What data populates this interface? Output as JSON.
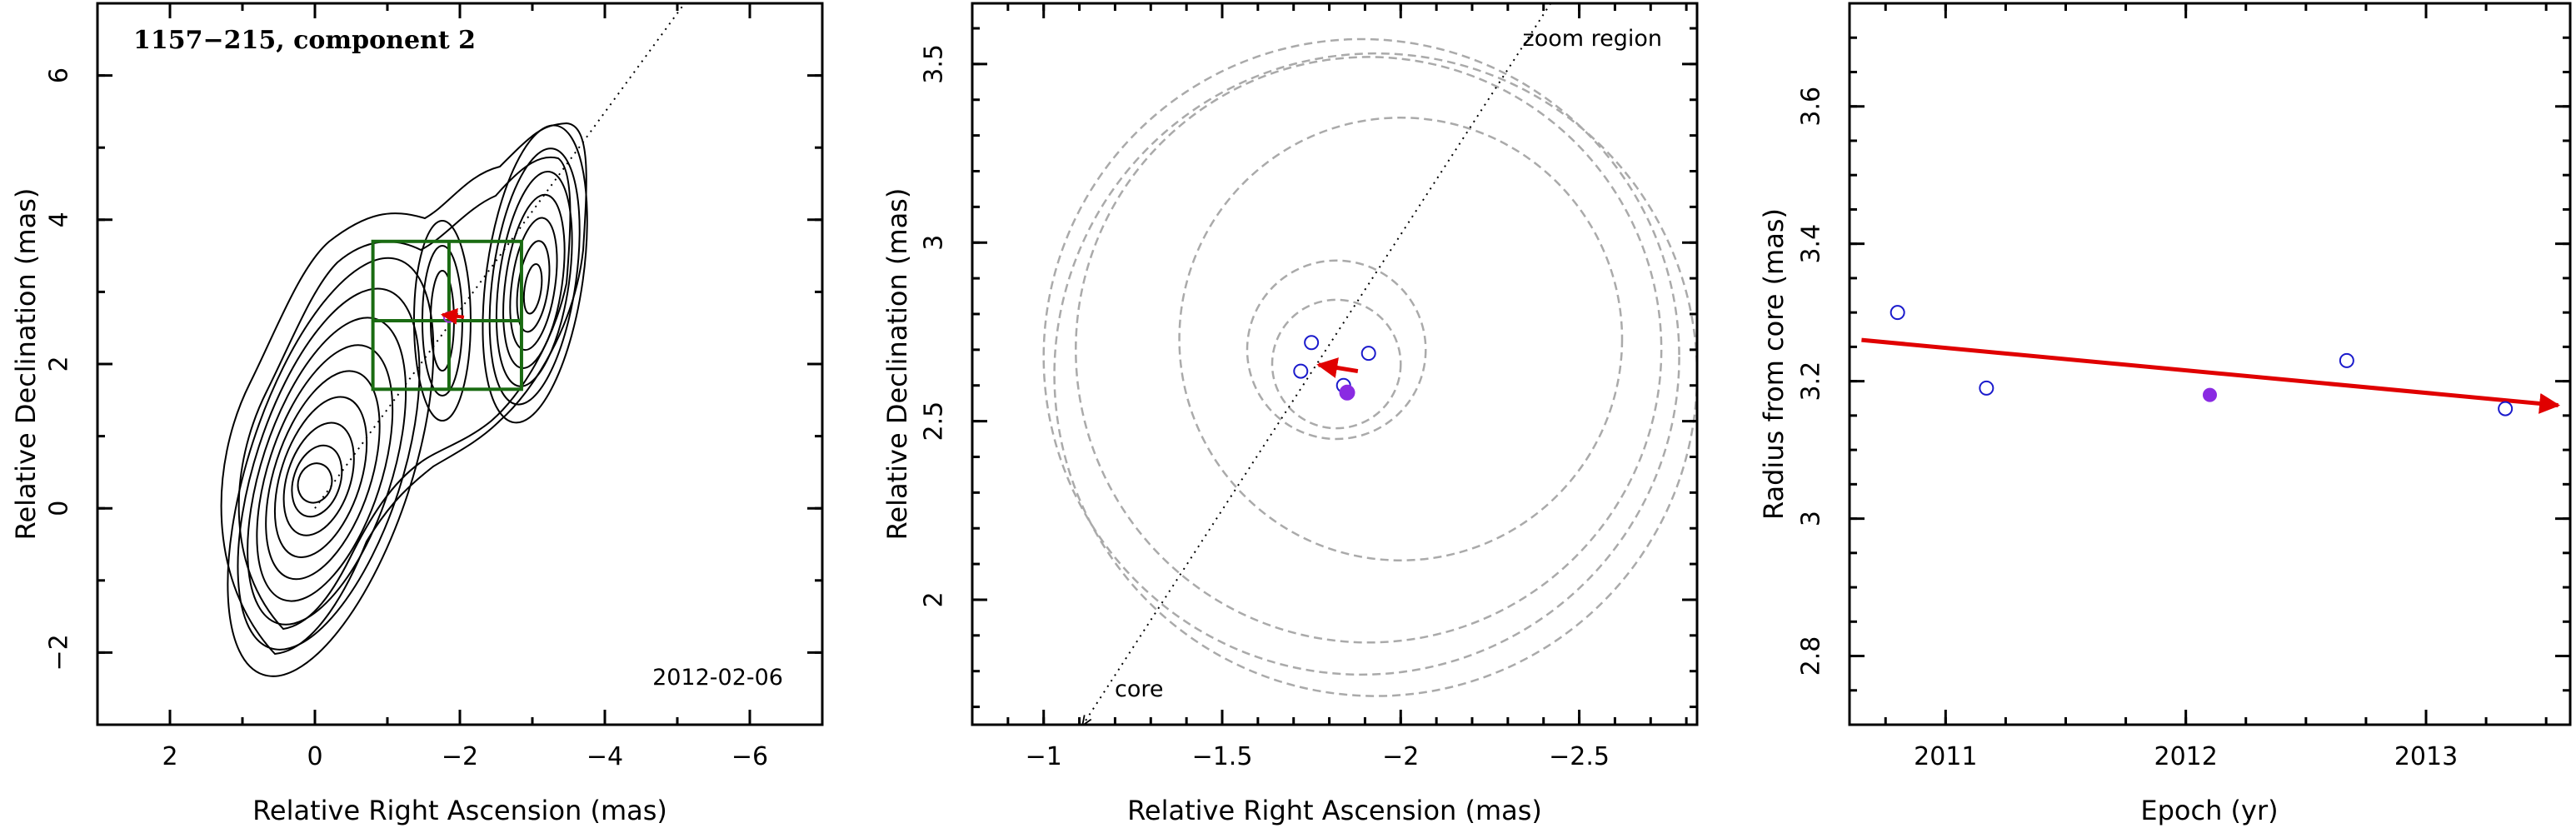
{
  "chart_data": [
    {
      "type": "contour",
      "title": "1157−215, component 2",
      "date_label": "2012-02-06",
      "xlabel": "Relative Right Ascension (mas)",
      "ylabel": "Relative Declination (mas)",
      "xlim": [
        3,
        -7
      ],
      "ylim": [
        -3,
        7
      ],
      "xticks": [
        2,
        0,
        -2,
        -4,
        -6
      ],
      "xtick_labels": [
        "2",
        "0",
        "−2",
        "−4",
        "−6"
      ],
      "yticks": [
        -2,
        0,
        2,
        4,
        6
      ],
      "ytick_labels": [
        "−2",
        "0",
        "2",
        "4",
        "6"
      ],
      "jet_axis": {
        "x1": 0,
        "y1": 0,
        "x2": -5.1,
        "y2": 7.0
      },
      "core": {
        "x": 0.0,
        "y": 0.35
      },
      "knot_inner": {
        "x": -1.85,
        "y": 2.6
      },
      "knot_outer": {
        "x": -2.95,
        "y": 3.05
      },
      "zoom_box": {
        "x": [
          -0.8,
          -2.85
        ],
        "y": [
          1.65,
          3.7
        ],
        "divider_x": -1.85,
        "divider_y": 2.6
      },
      "component_marker": {
        "x": -1.85,
        "y": 2.65
      },
      "colors": {
        "contour": "#000000",
        "box": "#1a6b12",
        "arrow": "#e00000",
        "marker": "#9b2bd6"
      }
    },
    {
      "type": "scatter",
      "corner_label": "zoom region",
      "core_label": "core",
      "xlabel": "Relative Right Ascension (mas)",
      "ylabel": "Relative Declination (mas)",
      "xlim": [
        -0.8,
        -2.83
      ],
      "ylim": [
        1.65,
        3.67
      ],
      "xticks": [
        -1,
        -1.5,
        -2,
        -2.5
      ],
      "xtick_labels": [
        "−1",
        "−1.5",
        "−2",
        "−2.5"
      ],
      "yticks": [
        2,
        2.5,
        3,
        3.5
      ],
      "ytick_labels": [
        "2",
        "2.5",
        "3",
        "3.5"
      ],
      "points_open": [
        {
          "x": -1.72,
          "y": 2.64
        },
        {
          "x": -1.75,
          "y": 2.72
        },
        {
          "x": -1.91,
          "y": 2.69
        },
        {
          "x": -1.84,
          "y": 2.6
        }
      ],
      "point_filled": {
        "x": -1.85,
        "y": 2.58
      },
      "circles": [
        {
          "cx": -1.82,
          "cy": 2.7,
          "r": 0.25
        },
        {
          "cx": -1.82,
          "cy": 2.66,
          "r": 0.18
        },
        {
          "cx": -2.0,
          "cy": 2.73,
          "r": 0.62
        },
        {
          "cx": -1.93,
          "cy": 2.63,
          "r": 0.9
        },
        {
          "cx": -1.91,
          "cy": 2.7,
          "r": 0.82
        },
        {
          "cx": -1.89,
          "cy": 2.68,
          "r": 0.89
        }
      ],
      "arrow": {
        "from": {
          "x": -1.88,
          "y": 2.64
        },
        "to": {
          "x": -1.77,
          "y": 2.658
        }
      },
      "jet_axis": {
        "x1": -1.11,
        "y1": 1.65,
        "x2": -2.42,
        "y2": 3.67
      },
      "colors": {
        "open_points": "#1a1acc",
        "filled_point": "#8a2be2",
        "circles": "#aaaaaa",
        "arrow": "#e00000"
      }
    },
    {
      "type": "scatter",
      "xlabel": "Epoch (yr)",
      "ylabel": "Radius from core (mas)",
      "xlim": [
        2010.6,
        2013.6
      ],
      "ylim": [
        2.7,
        3.75
      ],
      "xticks": [
        2011,
        2012,
        2013
      ],
      "xtick_labels": [
        "2011",
        "2012",
        "2013"
      ],
      "yticks": [
        2.8,
        3,
        3.2,
        3.4,
        3.6
      ],
      "ytick_labels": [
        "2.8",
        "3",
        "3.2",
        "3.4",
        "3.6"
      ],
      "points_open": [
        {
          "x": 2010.8,
          "y": 3.3
        },
        {
          "x": 2011.17,
          "y": 3.19
        },
        {
          "x": 2012.67,
          "y": 3.23
        },
        {
          "x": 2013.33,
          "y": 3.16
        }
      ],
      "point_filled": {
        "x": 2012.1,
        "y": 3.18
      },
      "fit_line": {
        "x1": 2010.65,
        "y1": 3.26,
        "x2": 2013.55,
        "y2": 3.165
      },
      "colors": {
        "open_points": "#1a1acc",
        "filled_point": "#8a2be2",
        "fit": "#e00000"
      }
    }
  ]
}
